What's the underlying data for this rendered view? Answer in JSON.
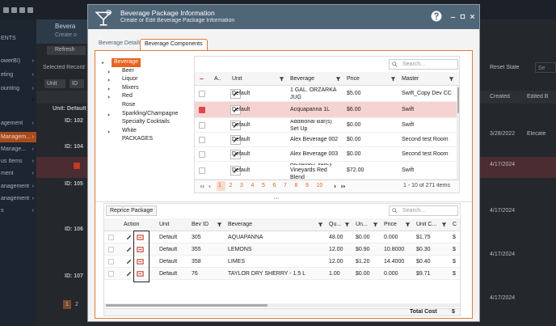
{
  "background": {
    "sidebar": [
      "ENTS",
      "owerBI)",
      "eting",
      "ounting",
      "agement",
      "Managem...",
      "Manage...",
      "us Items",
      "ment",
      "anagement",
      "anagement",
      "s"
    ],
    "page_title": "Bevera",
    "page_subtitle": "Create o",
    "refresh": "Refresh",
    "selected": "Selected Record",
    "chips": [
      "Unit",
      "ID"
    ],
    "group": "Unit: Default",
    "ids": [
      "ID: 102",
      "ID: 104",
      "ID: 105",
      "ID: 106",
      "ID: 107"
    ],
    "reset": "Reset State",
    "search": "Se",
    "columns": [
      "Created",
      "Edited B"
    ],
    "dates": [
      "3/28/2022",
      "4/17/2024",
      "4/17/2024",
      "4/17/2024",
      "4/17/2024"
    ],
    "edited": "Elecate",
    "pages": [
      "1",
      "2"
    ]
  },
  "dialog": {
    "title": "Beverage Package Information",
    "subtitle": "Create or Edit Beverage Package Information",
    "tabs": [
      "Beverage Details",
      "Beverage Components"
    ],
    "tree": [
      "Beverage",
      "Beer",
      "Liquor",
      "Mixers",
      "Red",
      "Rose",
      "Sparkling/Champagne",
      "Specialty Cocktails",
      "White",
      "PACKAGES"
    ],
    "grid": {
      "search": "Search...",
      "columns": [
        "A...",
        "Unit",
        "Beverage",
        "Price",
        "Master"
      ],
      "rows": [
        [
          "Default",
          "1 GAL. ORZARKA JUG",
          "$5.00",
          "Swift_Copy Dev CC"
        ],
        [
          "Default",
          "Acquapanna 1L",
          "$6.00",
          "Swift"
        ],
        [
          "Default",
          "Additional Bar(s) Set Up",
          "$0.00",
          "Swift"
        ],
        [
          "Default",
          "Alex Beverage 002",
          "$0.00",
          "Second test Room"
        ],
        [
          "Default",
          "Alex Beverage 003",
          "$0.00",
          "Second test Room"
        ],
        [
          "Default",
          "Alexander Valley Vineyards Red Blend",
          "$72.00",
          "Swift"
        ]
      ],
      "pages": [
        "1",
        "2",
        "3",
        "4",
        "5",
        "6",
        "7",
        "8",
        "9",
        "10"
      ],
      "summary": "1 - 10 of 271 items"
    },
    "components": {
      "button": "Reprice Package",
      "search": "Search...",
      "columns": [
        "Action",
        "Unit",
        "Bev ID",
        "Beverage",
        "Qu...",
        "Un...",
        "Price",
        "Unit C...",
        "C"
      ],
      "rows": [
        [
          "Default",
          "305",
          "AQUAPANNA",
          "48.00",
          "$0.00",
          "0.000",
          "$1.75",
          "$"
        ],
        [
          "Default",
          "355",
          "LEMONS",
          "12.00",
          "$0.90",
          "10.8000",
          "$0.30",
          "$"
        ],
        [
          "Default",
          "358",
          "LIMES",
          "12.00",
          "$1.20",
          "14.4000",
          "$0.40",
          "$"
        ],
        [
          "Default",
          "76",
          "TAYLOR DRY SHERRY - 1.5 L",
          "1.00",
          "$0.00",
          "0.000",
          "$9.71",
          "$"
        ]
      ],
      "footer_label": "Total Cost",
      "footer_value": "$"
    }
  }
}
